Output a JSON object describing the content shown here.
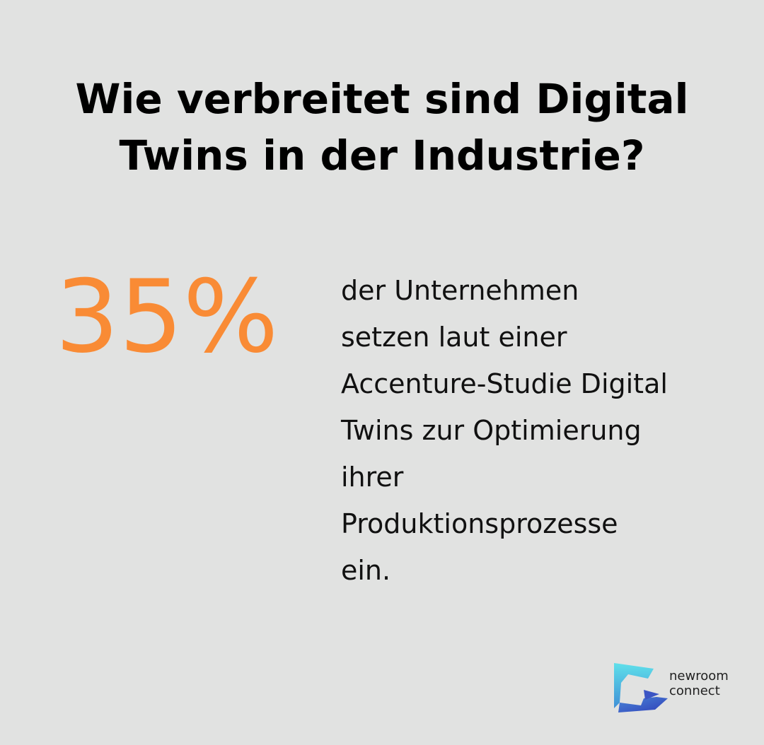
{
  "headline": {
    "line1": "Wie verbreitet sind Digital",
    "line2": "Twins in der Industrie?"
  },
  "stat": {
    "value": "35%",
    "description_lines": [
      "der Unternehmen",
      "setzen laut einer",
      "Accenture-Studie Digital",
      "Twins zur Optimierung",
      "ihrer",
      "Produktionsprozesse",
      "ein."
    ]
  },
  "brand": {
    "icon": "newroom-connect-logo-icon",
    "line1": "newroom",
    "line2": "connect"
  },
  "colors": {
    "background": "#e1e2e1",
    "accent": "#f98b35",
    "text": "#000000",
    "logo_cyan": "#55d6e6",
    "logo_blue": "#3a5fc8"
  }
}
